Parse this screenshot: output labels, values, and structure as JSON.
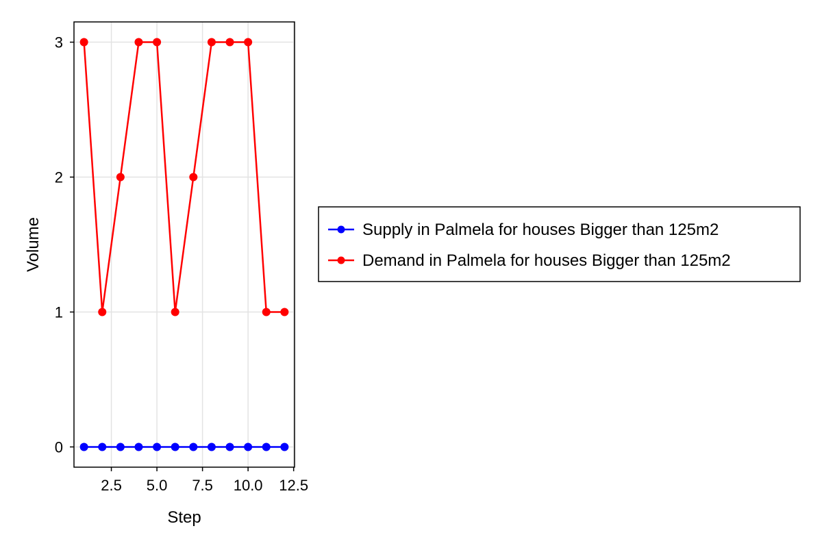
{
  "chart_data": {
    "type": "line",
    "title": "",
    "xlabel": "Step",
    "ylabel": "Volume",
    "x": [
      1,
      2,
      3,
      4,
      5,
      6,
      7,
      8,
      9,
      10,
      11,
      12
    ],
    "xlim": [
      0.45,
      12.55
    ],
    "ylim": [
      -0.15,
      3.15
    ],
    "xticks": [
      2.5,
      5.0,
      7.5,
      10.0,
      12.5
    ],
    "xtick_labels": [
      "2.5",
      "5.0",
      "7.5",
      "10.0",
      "12.5"
    ],
    "yticks": [
      0,
      1,
      2,
      3
    ],
    "ytick_labels": [
      "0",
      "1",
      "2",
      "3"
    ],
    "grid": true,
    "legend_position": "right",
    "series": [
      {
        "name": "Supply in Palmela for houses Bigger than 125m2",
        "color": "#0000ff",
        "values": [
          0,
          0,
          0,
          0,
          0,
          0,
          0,
          0,
          0,
          0,
          0,
          0
        ]
      },
      {
        "name": "Demand in Palmela for houses Bigger than 125m2",
        "color": "#ff0000",
        "values": [
          3,
          1,
          2,
          3,
          3,
          1,
          2,
          3,
          3,
          3,
          1,
          1
        ]
      }
    ]
  }
}
